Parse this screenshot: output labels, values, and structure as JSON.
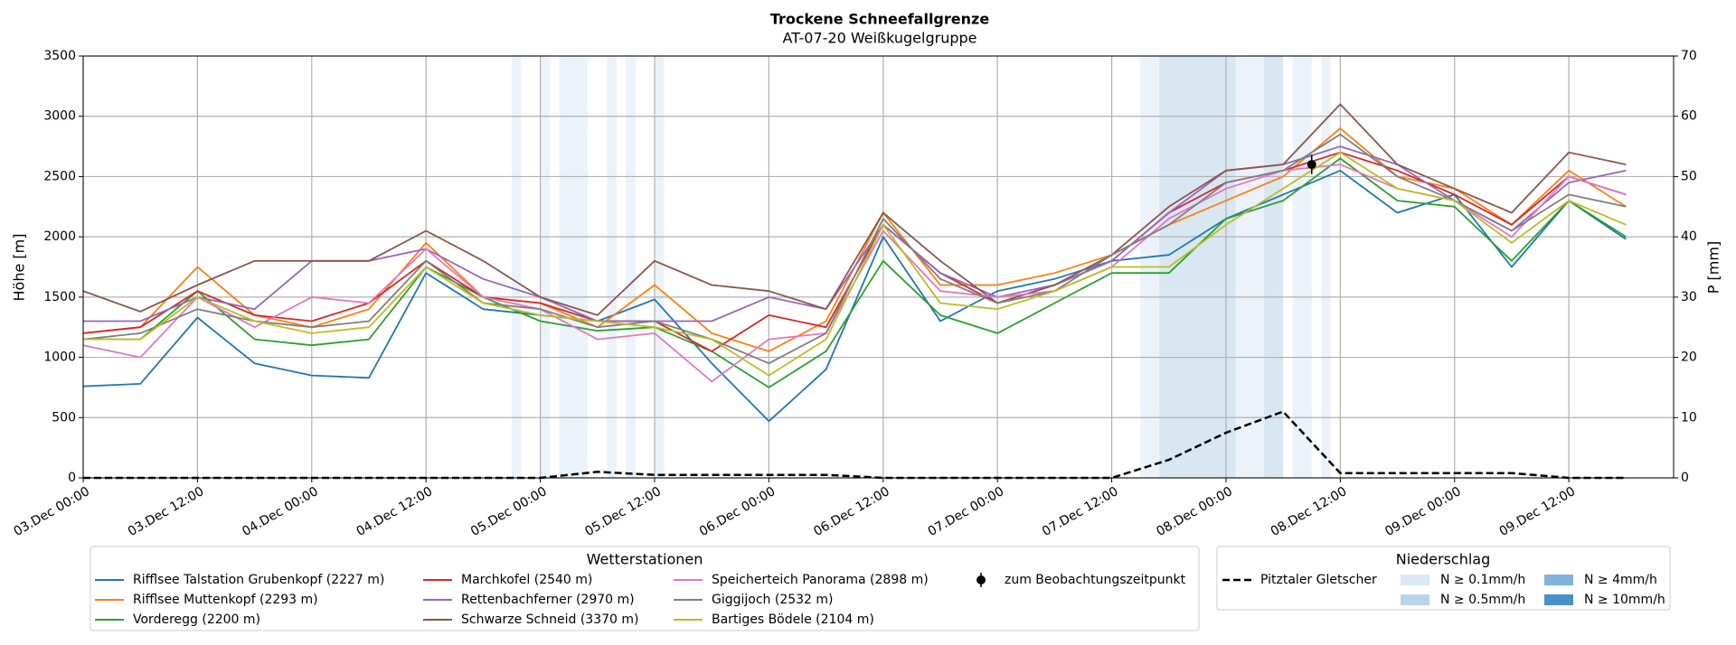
{
  "chart_data": {
    "type": "line",
    "title": "Trockene Schneefallgrenze",
    "subtitle": "AT-07-20 Weißkugelgruppe",
    "ylabel": "Höhe [m]",
    "y2label": "P [mm]",
    "grid": true,
    "xlim": [
      "03.Dec 00:00",
      "09.Dec 23:00"
    ],
    "xticks": [
      "03.Dec 00:00",
      "03.Dec 12:00",
      "04.Dec 00:00",
      "04.Dec 12:00",
      "05.Dec 00:00",
      "05.Dec 12:00",
      "06.Dec 00:00",
      "06.Dec 12:00",
      "07.Dec 00:00",
      "07.Dec 12:00",
      "08.Dec 00:00",
      "08.Dec 12:00",
      "09.Dec 00:00",
      "09.Dec 12:00"
    ],
    "ylim": [
      0,
      3500
    ],
    "yticks": [
      0,
      500,
      1000,
      1500,
      2000,
      2500,
      3000,
      3500
    ],
    "y2lim": [
      0,
      70
    ],
    "y2ticks": [
      0,
      10,
      20,
      30,
      40,
      50,
      60,
      70
    ],
    "x": [
      "03.Dec 00:00",
      "03.Dec 06:00",
      "03.Dec 12:00",
      "03.Dec 18:00",
      "04.Dec 00:00",
      "04.Dec 06:00",
      "04.Dec 12:00",
      "04.Dec 18:00",
      "05.Dec 00:00",
      "05.Dec 06:00",
      "05.Dec 12:00",
      "05.Dec 18:00",
      "06.Dec 00:00",
      "06.Dec 06:00",
      "06.Dec 12:00",
      "06.Dec 18:00",
      "07.Dec 00:00",
      "07.Dec 06:00",
      "07.Dec 12:00",
      "07.Dec 18:00",
      "08.Dec 00:00",
      "08.Dec 06:00",
      "08.Dec 12:00",
      "08.Dec 18:00",
      "09.Dec 00:00",
      "09.Dec 06:00",
      "09.Dec 12:00",
      "09.Dec 18:00"
    ],
    "legend_title": "Wetterstationen",
    "precip_legend_title": "Niederschlag",
    "series": [
      {
        "name": "Rifflsee Talstation Grubenkopf (2227 m)",
        "color": "#1f77b4",
        "values": [
          760,
          780,
          1330,
          950,
          850,
          830,
          1700,
          1400,
          1350,
          1300,
          1480,
          950,
          470,
          900,
          2000,
          1300,
          1550,
          1650,
          1800,
          1850,
          2150,
          2350,
          2550,
          2200,
          2350,
          1750,
          2300,
          1980
        ]
      },
      {
        "name": "Rifflsee Muttenkopf (2293 m)",
        "color": "#ff7f0e",
        "values": [
          1200,
          1250,
          1750,
          1350,
          1250,
          1400,
          1950,
          1500,
          1450,
          1250,
          1600,
          1200,
          1050,
          1300,
          2200,
          1600,
          1600,
          1700,
          1850,
          2100,
          2300,
          2500,
          2900,
          2500,
          2400,
          2100,
          2550,
          2250
        ]
      },
      {
        "name": "Vorderegg (2200 m)",
        "color": "#2ca02c",
        "values": [
          1150,
          1150,
          1550,
          1150,
          1100,
          1150,
          1750,
          1500,
          1300,
          1220,
          1250,
          1050,
          750,
          1050,
          1800,
          1350,
          1200,
          1450,
          1700,
          1700,
          2150,
          2300,
          2650,
          2300,
          2250,
          1800,
          2300,
          2000
        ]
      },
      {
        "name": "Marchkofel (2540 m)",
        "color": "#d62728",
        "values": [
          1200,
          1250,
          1550,
          1350,
          1300,
          1450,
          1800,
          1500,
          1450,
          1300,
          1300,
          1050,
          1350,
          1250,
          2100,
          1700,
          1450,
          1600,
          1800,
          2200,
          2450,
          2550,
          2700,
          2550,
          2350,
          2100,
          2500,
          2350
        ]
      },
      {
        "name": "Rettenbachferner (2970 m)",
        "color": "#9467bd",
        "values": [
          1300,
          1300,
          1500,
          1400,
          1800,
          1800,
          1900,
          1650,
          1500,
          1300,
          1300,
          1300,
          1500,
          1400,
          2100,
          1700,
          1500,
          1600,
          1800,
          2200,
          2550,
          2600,
          2750,
          2600,
          2300,
          2050,
          2450,
          2550
        ]
      },
      {
        "name": "Schwarze Schneid (3370 m)",
        "color": "#8c564b",
        "values": [
          1550,
          1380,
          1600,
          1800,
          1800,
          1800,
          2050,
          1800,
          1500,
          1350,
          1800,
          1600,
          1550,
          1400,
          2200,
          1800,
          1450,
          1600,
          1850,
          2250,
          2550,
          2600,
          3100,
          2600,
          2400,
          2200,
          2700,
          2600
        ]
      },
      {
        "name": "Speicherteich Panorama (2898 m)",
        "color": "#e377c2",
        "values": [
          1100,
          1000,
          1500,
          1250,
          1500,
          1450,
          1900,
          1500,
          1400,
          1150,
          1200,
          800,
          1150,
          1200,
          2050,
          1550,
          1500,
          1550,
          1750,
          2150,
          2400,
          2550,
          2600,
          2400,
          2300,
          2000,
          2500,
          2350
        ]
      },
      {
        "name": "Giggijoch (2532 m)",
        "color": "#7f7f7f",
        "values": [
          1150,
          1200,
          1400,
          1300,
          1250,
          1300,
          1800,
          1450,
          1400,
          1250,
          1300,
          1150,
          950,
          1200,
          2150,
          1650,
          1450,
          1550,
          1850,
          2100,
          2450,
          2550,
          2850,
          2500,
          2300,
          2050,
          2350,
          2250
        ]
      },
      {
        "name": "Bartiges Bödele (2104 m)",
        "color": "#bcbd22",
        "values": [
          1150,
          1150,
          1500,
          1300,
          1200,
          1250,
          1750,
          1450,
          1350,
          1300,
          1250,
          1150,
          850,
          1150,
          2100,
          1450,
          1400,
          1550,
          1750,
          1750,
          2100,
          2400,
          2700,
          2400,
          2300,
          1950,
          2300,
          2100
        ]
      },
      {
        "name": "Pitztaler Gletscher",
        "color": "#000000",
        "axis": "y2",
        "dash": true,
        "values": [
          0,
          0,
          0,
          0,
          0,
          0,
          0,
          0,
          0,
          1,
          0.5,
          0.5,
          0.5,
          0.5,
          0,
          0,
          0,
          0,
          0,
          3,
          7.5,
          11,
          0.8,
          0.8,
          0.8,
          0.8,
          0,
          0
        ]
      }
    ],
    "observation": {
      "name": "zum Beobachtungszeitpunkt",
      "color": "#000000",
      "x": "08.Dec 09:00",
      "value": 2600,
      "error": 80
    },
    "precip_levels": [
      {
        "label": "N ≥ 0.1mm/h",
        "color": "#dbe8f5"
      },
      {
        "label": "N ≥ 0.5mm/h",
        "color": "#b9d3ea"
      },
      {
        "label": "N ≥ 4mm/h",
        "color": "#7fb3dc"
      },
      {
        "label": "N ≥ 10mm/h",
        "color": "#4a90c8"
      }
    ],
    "precip_bands": [
      {
        "start": "04.Dec 21:00",
        "end": "04.Dec 22:00",
        "level": 0
      },
      {
        "start": "05.Dec 00:00",
        "end": "05.Dec 01:00",
        "level": 0
      },
      {
        "start": "05.Dec 02:00",
        "end": "05.Dec 05:00",
        "level": 0
      },
      {
        "start": "05.Dec 07:00",
        "end": "05.Dec 08:00",
        "level": 0
      },
      {
        "start": "05.Dec 09:00",
        "end": "05.Dec 10:00",
        "level": 0
      },
      {
        "start": "05.Dec 12:00",
        "end": "05.Dec 13:00",
        "level": 0
      },
      {
        "start": "07.Dec 15:00",
        "end": "07.Dec 17:00",
        "level": 0
      },
      {
        "start": "07.Dec 17:00",
        "end": "08.Dec 01:00",
        "level": 1
      },
      {
        "start": "08.Dec 01:00",
        "end": "08.Dec 04:00",
        "level": 0
      },
      {
        "start": "08.Dec 04:00",
        "end": "08.Dec 06:00",
        "level": 1
      },
      {
        "start": "08.Dec 07:00",
        "end": "08.Dec 09:00",
        "level": 0
      },
      {
        "start": "08.Dec 10:00",
        "end": "08.Dec 11:00",
        "level": 0
      }
    ]
  }
}
